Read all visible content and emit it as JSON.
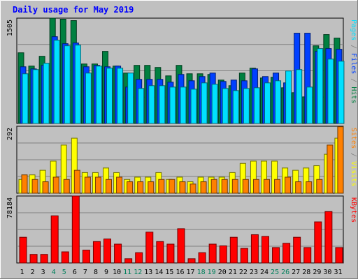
{
  "chart_data": {
    "type": "bar",
    "title": "Daily usage for May 2019",
    "colors": {
      "background": "#c0c0c0",
      "title": "#0000ff",
      "hits": "#008040",
      "files": "#0040ff",
      "pages": "#00e0ff",
      "visits": "#ffff00",
      "sites": "#ff8000",
      "kbytes": "#ff0000",
      "weekend_label": "#00805c",
      "weekday_label": "#000000"
    },
    "categories": [
      "1",
      "2",
      "3",
      "4",
      "5",
      "6",
      "7",
      "8",
      "9",
      "10",
      "11",
      "12",
      "13",
      "14",
      "15",
      "16",
      "17",
      "18",
      "19",
      "20",
      "21",
      "22",
      "23",
      "24",
      "25",
      "26",
      "27",
      "28",
      "29",
      "30",
      "31"
    ],
    "weekend_days": [
      "4",
      "5",
      "11",
      "12",
      "18",
      "19",
      "25",
      "26"
    ],
    "panels": [
      {
        "id": "hits-files-pages",
        "ymax": 1505,
        "ymax_label": "1505",
        "series": [
          {
            "name": "Hits",
            "key": "hits",
            "values": [
              1010,
              820,
              960,
              1505,
              1490,
              1470,
              850,
              850,
              1030,
              820,
              720,
              830,
              830,
              800,
              680,
              830,
              710,
              710,
              700,
              620,
              540,
              720,
              790,
              650,
              660,
              510,
              440,
              380,
              1110,
              1270,
              1220
            ]
          },
          {
            "name": "Files",
            "key": "files",
            "values": [
              810,
              780,
              830,
              1240,
              1140,
              1150,
              810,
              830,
              810,
              820,
              520,
              630,
              630,
              630,
              590,
              700,
              610,
              670,
              720,
              600,
              620,
              610,
              780,
              670,
              720,
              580,
              1290,
              1290,
              1030,
              1070,
              1060
            ]
          },
          {
            "name": "Pages",
            "key": "pages",
            "values": [
              710,
              770,
              860,
              1190,
              1110,
              1120,
              720,
              820,
              790,
              790,
              720,
              500,
              540,
              540,
              520,
              520,
              490,
              580,
              560,
              500,
              470,
              500,
              510,
              580,
              610,
              750,
              770,
              520,
              1070,
              920,
              890
            ]
          }
        ]
      },
      {
        "id": "visits-sites",
        "ymax": 292,
        "ymax_label": "292",
        "series": [
          {
            "name": "Visits",
            "key": "visits",
            "values": [
              60,
              80,
              100,
              140,
              210,
              240,
              90,
              90,
              110,
              90,
              60,
              70,
              70,
              90,
              60,
              70,
              50,
              70,
              70,
              70,
              90,
              130,
              140,
              140,
              140,
              110,
              100,
              110,
              120,
              170,
              240
            ]
          },
          {
            "name": "Sites",
            "key": "sites",
            "values": [
              80,
              60,
              50,
              70,
              60,
              100,
              70,
              70,
              60,
              70,
              50,
              50,
              50,
              60,
              60,
              50,
              40,
              50,
              60,
              60,
              60,
              60,
              60,
              60,
              60,
              70,
              50,
              50,
              60,
              210,
              290
            ]
          }
        ]
      },
      {
        "id": "kbytes",
        "ymax": 78184,
        "ymax_label": "78184",
        "series": [
          {
            "name": "KBytes",
            "key": "kbytes",
            "values": [
              30000,
              10000,
              10000,
              55000,
              13000,
              78184,
              15000,
              25000,
              28000,
              22000,
              5000,
              12000,
              36000,
              25000,
              22000,
              40000,
              5000,
              12000,
              22000,
              20000,
              30000,
              17000,
              33000,
              31000,
              18000,
              23000,
              30000,
              18000,
              48000,
              60000,
              18000
            ]
          }
        ]
      }
    ],
    "side_labels": [
      {
        "parts": [
          {
            "text": "Pages",
            "color": "#00e0ff"
          },
          {
            "text": " / ",
            "color": "#808080"
          },
          {
            "text": "Files",
            "color": "#0040ff"
          },
          {
            "text": " / ",
            "color": "#808080"
          },
          {
            "text": "Hits",
            "color": "#008040"
          }
        ]
      },
      {
        "parts": [
          {
            "text": "Sites",
            "color": "#ff8000"
          },
          {
            "text": " / ",
            "color": "#808080"
          },
          {
            "text": "Visits",
            "color": "#ffff00"
          }
        ]
      },
      {
        "parts": [
          {
            "text": "KBytes",
            "color": "#ff0000"
          }
        ]
      }
    ]
  }
}
